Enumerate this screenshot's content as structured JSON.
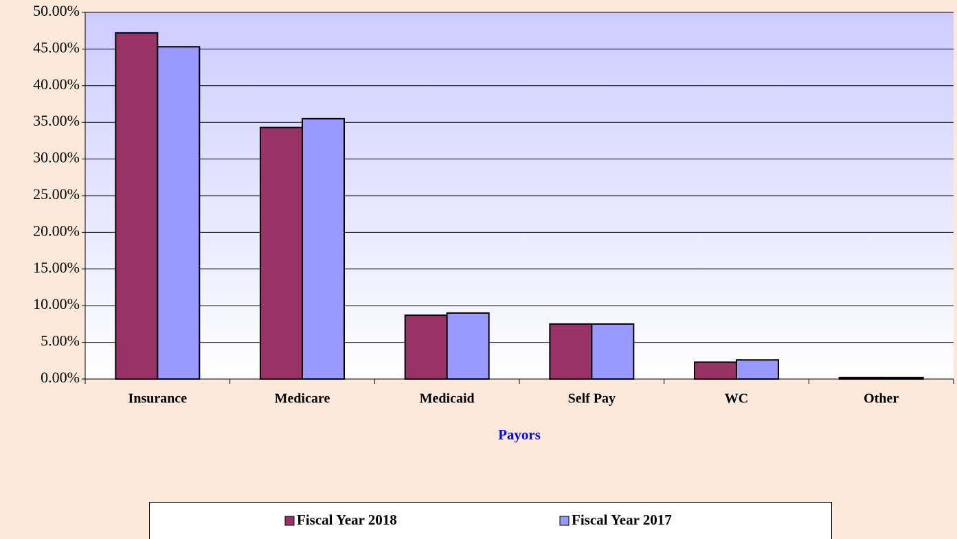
{
  "chart_data": {
    "type": "bar",
    "xlabel": "Payors",
    "categories": [
      "Insurance",
      "Medicare",
      "Medicaid",
      "Self Pay",
      "WC",
      "Other"
    ],
    "series": [
      {
        "name": "Fiscal Year 2018",
        "color": "#993366",
        "values": [
          47.2,
          34.3,
          8.7,
          7.5,
          2.3,
          0.2
        ]
      },
      {
        "name": "Fiscal Year 2017",
        "color": "#9999ff",
        "values": [
          45.3,
          35.5,
          9.0,
          7.5,
          2.6,
          0.2
        ]
      }
    ],
    "ylim": [
      0,
      50
    ],
    "yticks": [
      {
        "value": 0,
        "label": "0.00%"
      },
      {
        "value": 5,
        "label": "5.00%"
      },
      {
        "value": 10,
        "label": "10.00%"
      },
      {
        "value": 15,
        "label": "15.00%"
      },
      {
        "value": 20,
        "label": "20.00%"
      },
      {
        "value": 25,
        "label": "25.00%"
      },
      {
        "value": 30,
        "label": "30.00%"
      },
      {
        "value": 35,
        "label": "35.00%"
      },
      {
        "value": 40,
        "label": "40.00%"
      },
      {
        "value": 45,
        "label": "45.00%"
      },
      {
        "value": 50,
        "label": "50.00%"
      }
    ],
    "grid": true,
    "legend": "bottom"
  }
}
